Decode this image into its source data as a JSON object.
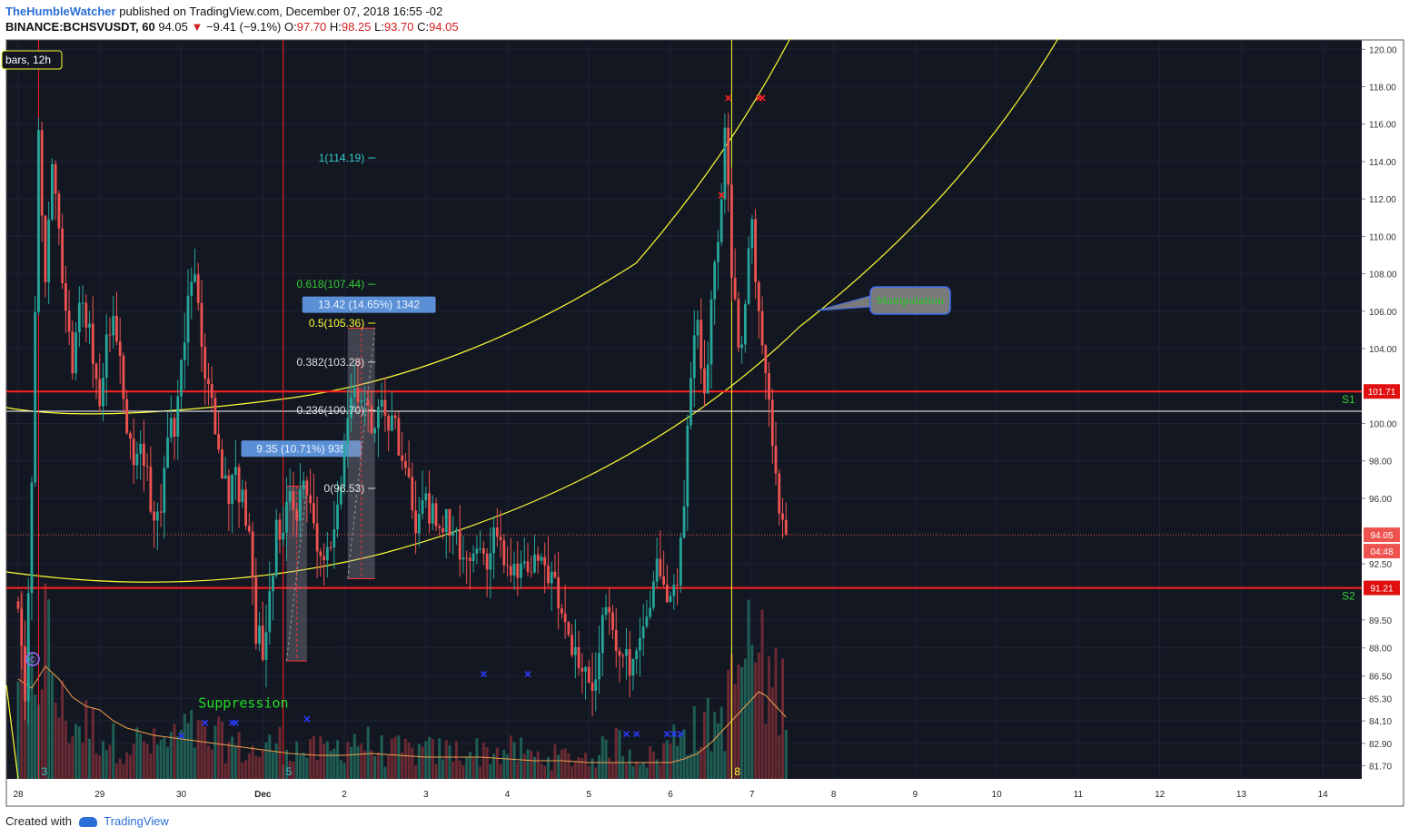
{
  "header": {
    "author": "TheHumbleWatcher",
    "published": "published on TradingView.com, December 07, 2018 16:55 -02",
    "symbol": "BINANCE:BCHSVUSDT, 60",
    "last": "94.05",
    "change": "−9.41 (−9.1%)",
    "open_label": "O:",
    "open": "97.70",
    "high_label": "H:",
    "high": "98.25",
    "low_label": "L:",
    "low": "93.70",
    "close_label": "C:",
    "close": "94.05"
  },
  "footer": {
    "created_with": "Created with",
    "brand": "TradingView"
  },
  "colors": {
    "background": "#131722",
    "up": "#26a69a",
    "down": "#ef5350",
    "support": "#ff0000",
    "arc": "#ffff33",
    "fib_cyan": "#33cccc",
    "fib_green": "#33cc33"
  },
  "chart_data": {
    "type": "candlestick",
    "timeframe": "60",
    "ylim": [
      81.0,
      120.5
    ],
    "price_axis_labels": [
      "120.00",
      "118.00",
      "116.00",
      "114.00",
      "112.00",
      "110.00",
      "108.00",
      "106.00",
      "104.00",
      "100.00",
      "98.00",
      "96.00",
      "92.50",
      "89.50",
      "88.00",
      "86.50",
      "85.30",
      "84.10",
      "82.90",
      "81.70"
    ],
    "time_axis_labels": [
      {
        "label": "28",
        "t": 0
      },
      {
        "label": "29",
        "t": 24
      },
      {
        "label": "30",
        "t": 48
      },
      {
        "label": "Dec",
        "t": 72
      },
      {
        "label": "2",
        "t": 96
      },
      {
        "label": "3",
        "t": 120
      },
      {
        "label": "4",
        "t": 144
      },
      {
        "label": "5",
        "t": 168
      },
      {
        "label": "6",
        "t": 192
      },
      {
        "label": "7",
        "t": 216
      },
      {
        "label": "8",
        "t": 240
      },
      {
        "label": "9",
        "t": 264
      },
      {
        "label": "10",
        "t": 288
      },
      {
        "label": "11",
        "t": 312
      },
      {
        "label": "12",
        "t": 336
      },
      {
        "label": "13",
        "t": 360
      },
      {
        "label": "14",
        "t": 384
      }
    ],
    "price_path": [
      [
        1,
        90.5
      ],
      [
        3,
        85
      ],
      [
        5,
        96
      ],
      [
        7,
        116
      ],
      [
        9,
        107
      ],
      [
        11,
        114
      ],
      [
        13,
        110
      ],
      [
        15,
        106
      ],
      [
        17,
        103
      ],
      [
        19,
        107
      ],
      [
        21,
        105
      ],
      [
        23,
        104
      ],
      [
        25,
        101
      ],
      [
        27,
        105
      ],
      [
        29,
        106
      ],
      [
        31,
        103
      ],
      [
        33,
        100
      ],
      [
        35,
        98
      ],
      [
        37,
        99
      ],
      [
        39,
        97
      ],
      [
        41,
        95
      ],
      [
        43,
        96
      ],
      [
        45,
        99
      ],
      [
        47,
        100
      ],
      [
        49,
        103
      ],
      [
        51,
        106
      ],
      [
        53,
        108
      ],
      [
        55,
        104
      ],
      [
        57,
        102
      ],
      [
        59,
        100
      ],
      [
        61,
        97
      ],
      [
        63,
        96
      ],
      [
        65,
        97
      ],
      [
        67,
        96
      ],
      [
        69,
        94
      ],
      [
        71,
        89
      ],
      [
        73,
        88
      ],
      [
        75,
        91
      ],
      [
        77,
        94
      ],
      [
        79,
        95
      ],
      [
        81,
        96
      ],
      [
        83,
        95
      ],
      [
        85,
        97
      ],
      [
        87,
        96
      ],
      [
        89,
        94
      ],
      [
        91,
        92
      ],
      [
        93,
        93
      ],
      [
        95,
        96
      ],
      [
        97,
        99
      ],
      [
        99,
        101
      ],
      [
        101,
        102
      ],
      [
        103,
        101
      ],
      [
        105,
        100
      ],
      [
        107,
        101
      ],
      [
        109,
        101
      ],
      [
        111,
        100
      ],
      [
        113,
        99
      ],
      [
        115,
        98
      ],
      [
        117,
        95
      ],
      [
        119,
        95
      ],
      [
        121,
        96
      ],
      [
        123,
        95
      ],
      [
        125,
        95
      ],
      [
        127,
        95
      ],
      [
        129,
        94
      ],
      [
        131,
        93
      ],
      [
        133,
        93
      ],
      [
        135,
        93
      ],
      [
        137,
        94
      ],
      [
        139,
        93
      ],
      [
        141,
        94
      ],
      [
        143,
        93
      ],
      [
        145,
        93
      ],
      [
        147,
        92
      ],
      [
        149,
        93
      ],
      [
        151,
        92
      ],
      [
        153,
        93
      ],
      [
        155,
        92
      ],
      [
        157,
        92
      ],
      [
        159,
        91
      ],
      [
        161,
        90
      ],
      [
        163,
        89
      ],
      [
        165,
        88
      ],
      [
        167,
        87
      ],
      [
        169,
        86
      ],
      [
        171,
        87
      ],
      [
        173,
        89
      ],
      [
        175,
        90
      ],
      [
        177,
        88
      ],
      [
        179,
        88
      ],
      [
        181,
        87
      ],
      [
        183,
        88
      ],
      [
        185,
        90
      ],
      [
        187,
        91
      ],
      [
        189,
        92
      ],
      [
        191,
        91
      ],
      [
        193,
        90
      ],
      [
        195,
        92
      ],
      [
        197,
        96
      ],
      [
        199,
        103
      ],
      [
        201,
        105
      ],
      [
        203,
        102
      ],
      [
        205,
        106
      ],
      [
        207,
        110
      ],
      [
        208,
        112
      ],
      [
        209,
        116
      ],
      [
        210,
        113
      ],
      [
        211,
        108
      ],
      [
        213,
        104
      ],
      [
        215,
        106
      ],
      [
        217,
        111
      ],
      [
        218,
        108
      ],
      [
        219,
        106
      ],
      [
        220,
        104
      ],
      [
        221,
        103
      ],
      [
        222,
        101
      ],
      [
        223,
        99
      ],
      [
        224,
        97
      ],
      [
        225,
        95
      ],
      [
        226,
        94.05
      ]
    ],
    "volume_path": [
      [
        0,
        0.7
      ],
      [
        4,
        0.5
      ],
      [
        8,
        0.8
      ],
      [
        12,
        0.4
      ],
      [
        16,
        0.3
      ],
      [
        20,
        0.3
      ],
      [
        24,
        0.25
      ],
      [
        28,
        0.2
      ],
      [
        32,
        0.2
      ],
      [
        36,
        0.2
      ],
      [
        40,
        0.18
      ],
      [
        44,
        0.2
      ],
      [
        48,
        0.25
      ],
      [
        52,
        0.25
      ],
      [
        56,
        0.2
      ],
      [
        60,
        0.22
      ],
      [
        64,
        0.18
      ],
      [
        68,
        0.15
      ],
      [
        72,
        0.15
      ],
      [
        76,
        0.2
      ],
      [
        80,
        0.18
      ],
      [
        84,
        0.15
      ],
      [
        88,
        0.15
      ],
      [
        92,
        0.15
      ],
      [
        96,
        0.2
      ],
      [
        100,
        0.22
      ],
      [
        104,
        0.18
      ],
      [
        108,
        0.15
      ],
      [
        112,
        0.15
      ],
      [
        116,
        0.15
      ],
      [
        120,
        0.15
      ],
      [
        124,
        0.15
      ],
      [
        128,
        0.15
      ],
      [
        132,
        0.15
      ],
      [
        136,
        0.15
      ],
      [
        140,
        0.15
      ],
      [
        144,
        0.15
      ],
      [
        148,
        0.15
      ],
      [
        152,
        0.12
      ],
      [
        156,
        0.12
      ],
      [
        160,
        0.12
      ],
      [
        164,
        0.12
      ],
      [
        168,
        0.12
      ],
      [
        172,
        0.15
      ],
      [
        176,
        0.2
      ],
      [
        180,
        0.15
      ],
      [
        184,
        0.12
      ],
      [
        188,
        0.12
      ],
      [
        192,
        0.2
      ],
      [
        196,
        0.3
      ],
      [
        200,
        0.25
      ],
      [
        204,
        0.3
      ],
      [
        208,
        0.35
      ],
      [
        212,
        0.6
      ],
      [
        216,
        0.75
      ],
      [
        220,
        0.55
      ],
      [
        224,
        0.5
      ],
      [
        226,
        0.45
      ]
    ],
    "volume_ma": [
      [
        0,
        0.55
      ],
      [
        4,
        0.5
      ],
      [
        8,
        0.62
      ],
      [
        12,
        0.55
      ],
      [
        16,
        0.45
      ],
      [
        20,
        0.4
      ],
      [
        24,
        0.38
      ],
      [
        28,
        0.32
      ],
      [
        32,
        0.28
      ],
      [
        40,
        0.24
      ],
      [
        48,
        0.22
      ],
      [
        56,
        0.2
      ],
      [
        64,
        0.18
      ],
      [
        72,
        0.16
      ],
      [
        80,
        0.14
      ],
      [
        88,
        0.13
      ],
      [
        96,
        0.13
      ],
      [
        104,
        0.14
      ],
      [
        112,
        0.13
      ],
      [
        120,
        0.12
      ],
      [
        128,
        0.12
      ],
      [
        136,
        0.12
      ],
      [
        144,
        0.11
      ],
      [
        152,
        0.1
      ],
      [
        160,
        0.1
      ],
      [
        168,
        0.09
      ],
      [
        176,
        0.09
      ],
      [
        184,
        0.09
      ],
      [
        192,
        0.09
      ],
      [
        196,
        0.11
      ],
      [
        200,
        0.14
      ],
      [
        204,
        0.2
      ],
      [
        208,
        0.28
      ],
      [
        212,
        0.36
      ],
      [
        216,
        0.44
      ],
      [
        218,
        0.48
      ],
      [
        220,
        0.46
      ],
      [
        224,
        0.38
      ],
      [
        226,
        0.34
      ]
    ],
    "horizontal_lines": [
      {
        "price": 101.71,
        "label": "101.71",
        "tag": "S1",
        "color": "#ff2020"
      },
      {
        "price": 91.21,
        "label": "91.21",
        "tag": "S2",
        "color": "#ff2020"
      },
      {
        "price": 100.65,
        "label": "",
        "tag": "",
        "color": "#ffffff"
      }
    ],
    "current_price": {
      "label": "94.05",
      "countdown": "04:48",
      "price": 94.05
    },
    "vertical_lines": [
      {
        "t": 6,
        "color": "#ff2020",
        "badge": "3"
      },
      {
        "t": 78,
        "color": "#ff2020",
        "badge": "5"
      },
      {
        "t": 210,
        "color": "#ffff33",
        "badge": "8"
      }
    ],
    "fib_levels": [
      {
        "label": "1(114.19)",
        "price": 114.19,
        "color": "#33cccc"
      },
      {
        "label": "0.618(107.44)",
        "price": 107.44,
        "color": "#33cc33"
      },
      {
        "label": "0.5(105.36)",
        "price": 105.36,
        "color": "#ffff33"
      },
      {
        "label": "0.382(103.28)",
        "price": 103.28,
        "color": "#e0e0e0"
      },
      {
        "label": "0.236(100.70)",
        "price": 100.7,
        "color": "#e0e0e0"
      },
      {
        "label": "0(96.53)",
        "price": 96.53,
        "color": "#e0e0e0"
      }
    ],
    "measures": [
      {
        "label": "9.35 (10.71%) 935",
        "t0": 79,
        "t1": 85,
        "p0": 87.3,
        "p1": 96.65,
        "label_price": 98.6
      },
      {
        "label": "13.42 (14.65%) 1342",
        "t0": 97,
        "t1": 105,
        "p0": 91.7,
        "p1": 105.1,
        "label_price": 106.3
      }
    ],
    "annotations": [
      {
        "label": "Suppression",
        "t": 53,
        "price": 84.8,
        "color": "#22dd22"
      },
      {
        "label": "Manipulation",
        "t": 262,
        "price": 104.5,
        "color": "#22cc22"
      },
      {
        "label": "bars, 12h",
        "t": 0,
        "price": 119.4,
        "color": "#ffffff"
      }
    ],
    "red_x_marks": [
      [
        209,
        117.4
      ],
      [
        218,
        117.4
      ],
      [
        219,
        117.4
      ],
      [
        207,
        112.2
      ]
    ],
    "blue_x_marks": [
      [
        48,
        83.3
      ],
      [
        55,
        84
      ],
      [
        63,
        84
      ],
      [
        64,
        84
      ],
      [
        85,
        84.2
      ],
      [
        137,
        86.6
      ],
      [
        150,
        86.6
      ],
      [
        179,
        83.4
      ],
      [
        182,
        83.4
      ],
      [
        191,
        83.4
      ],
      [
        193,
        83.4
      ],
      [
        195,
        83.4
      ]
    ]
  }
}
